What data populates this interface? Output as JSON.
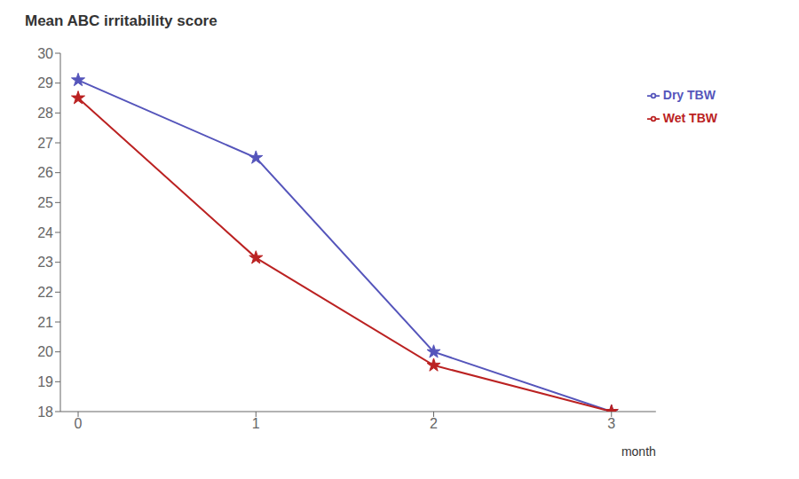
{
  "chart_data": {
    "type": "line",
    "title": "Mean ABC irritability score",
    "xlabel": "month",
    "x": [
      0,
      1,
      2,
      3
    ],
    "series": [
      {
        "name": "Dry TBW",
        "color": "#5555bb",
        "values": [
          29.1,
          26.5,
          20.0,
          18.0
        ],
        "marker": "star"
      },
      {
        "name": "Wet TBW",
        "color": "#bb2222",
        "values": [
          28.5,
          23.15,
          19.55,
          18.0
        ],
        "marker": "star"
      }
    ],
    "xlim": [
      -0.1,
      3.25
    ],
    "ylim": [
      18,
      30
    ],
    "xticks": [
      0,
      1,
      2,
      3
    ],
    "yticks": [
      18,
      19,
      20,
      21,
      22,
      23,
      24,
      25,
      26,
      27,
      28,
      29,
      30
    ],
    "grid": false,
    "legend": "upper right"
  }
}
